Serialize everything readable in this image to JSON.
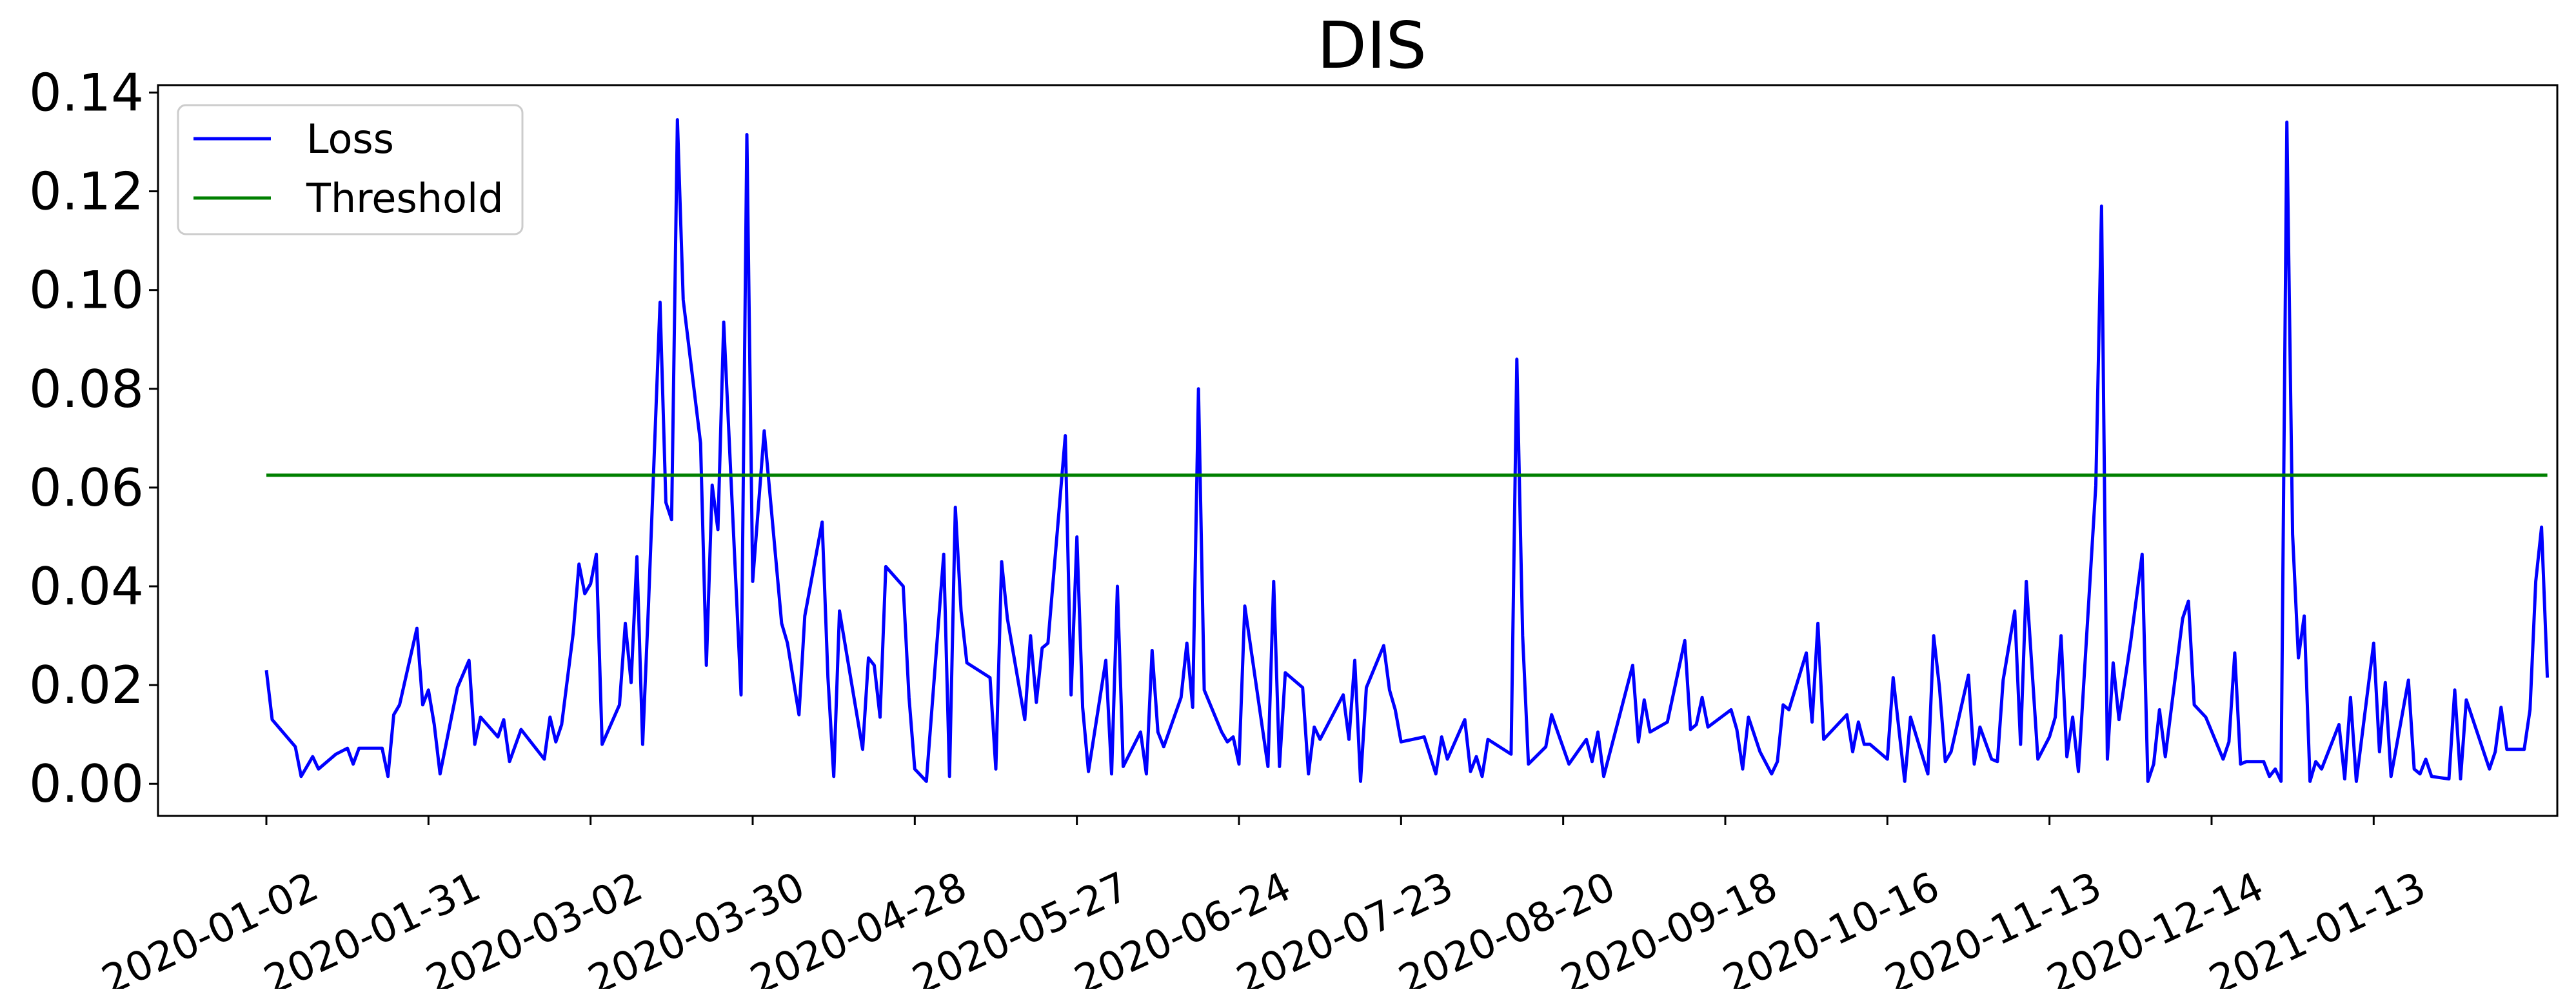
{
  "chart_data": {
    "type": "line",
    "title": "DIS",
    "xlabel": "",
    "ylabel": "",
    "x_range": [
      "2020-01-02",
      "2021-01-13"
    ],
    "ylim": [
      -0.0065,
      0.1415
    ],
    "yticks": [
      0.0,
      0.02,
      0.04,
      0.06,
      0.08,
      0.1,
      0.12,
      0.14
    ],
    "ytick_labels": [
      "0.00",
      "0.02",
      "0.04",
      "0.06",
      "0.08",
      "0.10",
      "0.12",
      "0.14"
    ],
    "xtick_labels": [
      "2020-01-02",
      "2020-01-31",
      "2020-03-02",
      "2020-03-30",
      "2020-04-28",
      "2020-05-27",
      "2020-06-24",
      "2020-07-23",
      "2020-08-20",
      "2020-09-18",
      "2020-10-16",
      "2020-11-13",
      "2020-12-14",
      "2021-01-13"
    ],
    "grid": false,
    "legend_position": "top-left",
    "series": [
      {
        "name": "Loss",
        "color": "#0000ff",
        "points": [
          [
            "2020-01-02",
            0.023
          ],
          [
            "2020-01-03",
            0.013
          ],
          [
            "2020-01-07",
            0.0075
          ],
          [
            "2020-01-08",
            0.0015
          ],
          [
            "2020-01-10",
            0.0055
          ],
          [
            "2020-01-11",
            0.003
          ],
          [
            "2020-01-14",
            0.006
          ],
          [
            "2020-01-16",
            0.0072
          ],
          [
            "2020-01-17",
            0.004
          ],
          [
            "2020-01-18",
            0.0072
          ],
          [
            "2020-01-22",
            0.0072
          ],
          [
            "2020-01-23",
            0.0015
          ],
          [
            "2020-01-24",
            0.014
          ],
          [
            "2020-01-25",
            0.016
          ],
          [
            "2020-01-28",
            0.0315
          ],
          [
            "2020-01-29",
            0.016
          ],
          [
            "2020-01-30",
            0.019
          ],
          [
            "2020-01-31",
            0.012
          ],
          [
            "2020-02-01",
            0.002
          ],
          [
            "2020-02-04",
            0.0195
          ],
          [
            "2020-02-06",
            0.025
          ],
          [
            "2020-02-07",
            0.008
          ],
          [
            "2020-02-08",
            0.0135
          ],
          [
            "2020-02-11",
            0.0095
          ],
          [
            "2020-02-12",
            0.013
          ],
          [
            "2020-02-13",
            0.0045
          ],
          [
            "2020-02-15",
            0.011
          ],
          [
            "2020-02-19",
            0.005
          ],
          [
            "2020-02-20",
            0.0135
          ],
          [
            "2020-02-21",
            0.0085
          ],
          [
            "2020-02-22",
            0.012
          ],
          [
            "2020-02-24",
            0.0305
          ],
          [
            "2020-02-25",
            0.0445
          ],
          [
            "2020-02-26",
            0.0385
          ],
          [
            "2020-02-27",
            0.0405
          ],
          [
            "2020-02-28",
            0.0465
          ],
          [
            "2020-02-29",
            0.008
          ],
          [
            "2020-03-03",
            0.016
          ],
          [
            "2020-03-04",
            0.0325
          ],
          [
            "2020-03-05",
            0.0205
          ],
          [
            "2020-03-06",
            0.046
          ],
          [
            "2020-03-07",
            0.008
          ],
          [
            "2020-03-08",
            0.036
          ],
          [
            "2020-03-10",
            0.0975
          ],
          [
            "2020-03-11",
            0.057
          ],
          [
            "2020-03-12",
            0.0535
          ],
          [
            "2020-03-13",
            0.1345
          ],
          [
            "2020-03-14",
            0.098
          ],
          [
            "2020-03-17",
            0.069
          ],
          [
            "2020-03-18",
            0.024
          ],
          [
            "2020-03-19",
            0.0605
          ],
          [
            "2020-03-20",
            0.0515
          ],
          [
            "2020-03-21",
            0.0935
          ],
          [
            "2020-03-24",
            0.018
          ],
          [
            "2020-03-25",
            0.1315
          ],
          [
            "2020-03-26",
            0.041
          ],
          [
            "2020-03-28",
            0.0715
          ],
          [
            "2020-03-31",
            0.0325
          ],
          [
            "2020-04-01",
            0.0285
          ],
          [
            "2020-04-03",
            0.014
          ],
          [
            "2020-04-04",
            0.034
          ],
          [
            "2020-04-07",
            0.053
          ],
          [
            "2020-04-08",
            0.0215
          ],
          [
            "2020-04-09",
            0.0015
          ],
          [
            "2020-04-10",
            0.035
          ],
          [
            "2020-04-14",
            0.007
          ],
          [
            "2020-04-15",
            0.0255
          ],
          [
            "2020-04-16",
            0.024
          ],
          [
            "2020-04-17",
            0.0135
          ],
          [
            "2020-04-18",
            0.044
          ],
          [
            "2020-04-21",
            0.04
          ],
          [
            "2020-04-22",
            0.0175
          ],
          [
            "2020-04-23",
            0.003
          ],
          [
            "2020-04-25",
            0.0005
          ],
          [
            "2020-04-28",
            0.0465
          ],
          [
            "2020-04-29",
            0.0015
          ],
          [
            "2020-04-30",
            0.056
          ],
          [
            "2020-05-01",
            0.035
          ],
          [
            "2020-05-02",
            0.0245
          ],
          [
            "2020-05-06",
            0.0215
          ],
          [
            "2020-05-07",
            0.003
          ],
          [
            "2020-05-08",
            0.045
          ],
          [
            "2020-05-09",
            0.0335
          ],
          [
            "2020-05-12",
            0.013
          ],
          [
            "2020-05-13",
            0.03
          ],
          [
            "2020-05-14",
            0.0165
          ],
          [
            "2020-05-15",
            0.0275
          ],
          [
            "2020-05-16",
            0.0285
          ],
          [
            "2020-05-19",
            0.0705
          ],
          [
            "2020-05-20",
            0.018
          ],
          [
            "2020-05-21",
            0.05
          ],
          [
            "2020-05-22",
            0.0155
          ],
          [
            "2020-05-23",
            0.0025
          ],
          [
            "2020-05-26",
            0.025
          ],
          [
            "2020-05-27",
            0.002
          ],
          [
            "2020-05-28",
            0.04
          ],
          [
            "2020-05-29",
            0.0035
          ],
          [
            "2020-06-01",
            0.0105
          ],
          [
            "2020-06-02",
            0.002
          ],
          [
            "2020-06-03",
            0.027
          ],
          [
            "2020-06-04",
            0.0105
          ],
          [
            "2020-06-05",
            0.0075
          ],
          [
            "2020-06-08",
            0.0175
          ],
          [
            "2020-06-09",
            0.0285
          ],
          [
            "2020-06-10",
            0.0155
          ],
          [
            "2020-06-11",
            0.08
          ],
          [
            "2020-06-12",
            0.019
          ],
          [
            "2020-06-15",
            0.0105
          ],
          [
            "2020-06-16",
            0.0085
          ],
          [
            "2020-06-17",
            0.0095
          ],
          [
            "2020-06-18",
            0.004
          ],
          [
            "2020-06-19",
            0.036
          ],
          [
            "2020-06-23",
            0.0035
          ],
          [
            "2020-06-24",
            0.041
          ],
          [
            "2020-06-25",
            0.0035
          ],
          [
            "2020-06-26",
            0.0225
          ],
          [
            "2020-06-29",
            0.0195
          ],
          [
            "2020-06-30",
            0.002
          ],
          [
            "2020-07-01",
            0.0115
          ],
          [
            "2020-07-02",
            0.009
          ],
          [
            "2020-07-06",
            0.018
          ],
          [
            "2020-07-07",
            0.009
          ],
          [
            "2020-07-08",
            0.025
          ],
          [
            "2020-07-09",
            0.0005
          ],
          [
            "2020-07-10",
            0.0195
          ],
          [
            "2020-07-13",
            0.028
          ],
          [
            "2020-07-14",
            0.019
          ],
          [
            "2020-07-15",
            0.015
          ],
          [
            "2020-07-16",
            0.0085
          ],
          [
            "2020-07-20",
            0.0095
          ],
          [
            "2020-07-22",
            0.002
          ],
          [
            "2020-07-23",
            0.0095
          ],
          [
            "2020-07-24",
            0.005
          ],
          [
            "2020-07-27",
            0.013
          ],
          [
            "2020-07-28",
            0.0025
          ],
          [
            "2020-07-29",
            0.0055
          ],
          [
            "2020-07-30",
            0.0015
          ],
          [
            "2020-07-31",
            0.009
          ],
          [
            "2020-08-04",
            0.006
          ],
          [
            "2020-08-05",
            0.086
          ],
          [
            "2020-08-06",
            0.03
          ],
          [
            "2020-08-07",
            0.004
          ],
          [
            "2020-08-10",
            0.0075
          ],
          [
            "2020-08-11",
            0.014
          ],
          [
            "2020-08-14",
            0.004
          ],
          [
            "2020-08-17",
            0.009
          ],
          [
            "2020-08-18",
            0.0045
          ],
          [
            "2020-08-19",
            0.0105
          ],
          [
            "2020-08-20",
            0.0015
          ],
          [
            "2020-08-25",
            0.024
          ],
          [
            "2020-08-26",
            0.0085
          ],
          [
            "2020-08-27",
            0.017
          ],
          [
            "2020-08-28",
            0.0105
          ],
          [
            "2020-08-31",
            0.0125
          ],
          [
            "2020-09-03",
            0.029
          ],
          [
            "2020-09-04",
            0.011
          ],
          [
            "2020-09-05",
            0.012
          ],
          [
            "2020-09-06",
            0.0175
          ],
          [
            "2020-09-07",
            0.0115
          ],
          [
            "2020-09-11",
            0.015
          ],
          [
            "2020-09-12",
            0.011
          ],
          [
            "2020-09-13",
            0.003
          ],
          [
            "2020-09-14",
            0.0135
          ],
          [
            "2020-09-16",
            0.0065
          ],
          [
            "2020-09-18",
            0.002
          ],
          [
            "2020-09-19",
            0.0045
          ],
          [
            "2020-09-20",
            0.016
          ],
          [
            "2020-09-21",
            0.015
          ],
          [
            "2020-09-24",
            0.0265
          ],
          [
            "2020-09-25",
            0.0125
          ],
          [
            "2020-09-26",
            0.0325
          ],
          [
            "2020-09-27",
            0.009
          ],
          [
            "2020-10-01",
            0.014
          ],
          [
            "2020-10-02",
            0.0065
          ],
          [
            "2020-10-03",
            0.0125
          ],
          [
            "2020-10-04",
            0.008
          ],
          [
            "2020-10-05",
            0.008
          ],
          [
            "2020-10-08",
            0.005
          ],
          [
            "2020-10-09",
            0.0215
          ],
          [
            "2020-10-11",
            0.0005
          ],
          [
            "2020-10-12",
            0.0135
          ],
          [
            "2020-10-15",
            0.002
          ],
          [
            "2020-10-16",
            0.03
          ],
          [
            "2020-10-17",
            0.0195
          ],
          [
            "2020-10-18",
            0.0045
          ],
          [
            "2020-10-19",
            0.0065
          ],
          [
            "2020-10-22",
            0.022
          ],
          [
            "2020-10-23",
            0.004
          ],
          [
            "2020-10-24",
            0.0115
          ],
          [
            "2020-10-26",
            0.005
          ],
          [
            "2020-10-27",
            0.0045
          ],
          [
            "2020-10-28",
            0.021
          ],
          [
            "2020-10-30",
            0.035
          ],
          [
            "2020-10-31",
            0.008
          ],
          [
            "2020-11-01",
            0.041
          ],
          [
            "2020-11-03",
            0.005
          ],
          [
            "2020-11-05",
            0.0095
          ],
          [
            "2020-11-06",
            0.0135
          ],
          [
            "2020-11-07",
            0.03
          ],
          [
            "2020-11-08",
            0.0055
          ],
          [
            "2020-11-09",
            0.0135
          ],
          [
            "2020-11-10",
            0.0025
          ],
          [
            "2020-11-13",
            0.0605
          ],
          [
            "2020-11-14",
            0.117
          ],
          [
            "2020-11-15",
            0.005
          ],
          [
            "2020-11-16",
            0.0245
          ],
          [
            "2020-11-17",
            0.013
          ],
          [
            "2020-11-19",
            0.0285
          ],
          [
            "2020-11-21",
            0.0465
          ],
          [
            "2020-11-22",
            0.0005
          ],
          [
            "2020-11-23",
            0.004
          ],
          [
            "2020-11-24",
            0.015
          ],
          [
            "2020-11-25",
            0.0055
          ],
          [
            "2020-11-28",
            0.0335
          ],
          [
            "2020-11-29",
            0.037
          ],
          [
            "2020-11-30",
            0.016
          ],
          [
            "2020-12-02",
            0.0135
          ],
          [
            "2020-12-05",
            0.005
          ],
          [
            "2020-12-06",
            0.0085
          ],
          [
            "2020-12-07",
            0.0265
          ],
          [
            "2020-12-08",
            0.004
          ],
          [
            "2020-12-09",
            0.0045
          ],
          [
            "2020-12-11",
            0.0045
          ],
          [
            "2020-12-12",
            0.0045
          ],
          [
            "2020-12-13",
            0.0015
          ],
          [
            "2020-12-14",
            0.003
          ],
          [
            "2020-12-15",
            0.0005
          ],
          [
            "2020-12-16",
            0.134
          ],
          [
            "2020-12-17",
            0.0505
          ],
          [
            "2020-12-18",
            0.0255
          ],
          [
            "2020-12-19",
            0.034
          ],
          [
            "2020-12-20",
            0.0005
          ],
          [
            "2020-12-21",
            0.0045
          ],
          [
            "2020-12-22",
            0.003
          ],
          [
            "2020-12-25",
            0.012
          ],
          [
            "2020-12-26",
            0.001
          ],
          [
            "2020-12-27",
            0.0175
          ],
          [
            "2020-12-28",
            0.0005
          ],
          [
            "2020-12-31",
            0.0285
          ],
          [
            "2021-01-01",
            0.0065
          ],
          [
            "2021-01-02",
            0.0205
          ],
          [
            "2021-01-03",
            0.0015
          ],
          [
            "2021-01-06",
            0.021
          ],
          [
            "2021-01-07",
            0.003
          ],
          [
            "2021-01-08",
            0.002
          ],
          [
            "2021-01-09",
            0.005
          ],
          [
            "2021-01-10",
            0.0015
          ],
          [
            "2021-01-13",
            0.001
          ],
          [
            "2021-01-14",
            0.019
          ],
          [
            "2021-01-15",
            0.001
          ],
          [
            "2021-01-16",
            0.017
          ],
          [
            "2021-01-17",
            0.0135
          ],
          [
            "2021-01-20",
            0.003
          ],
          [
            "2021-01-21",
            0.0065
          ],
          [
            "2021-01-22",
            0.0155
          ],
          [
            "2021-01-23",
            0.007
          ],
          [
            "2021-01-26",
            0.007
          ],
          [
            "2021-01-27",
            0.015
          ],
          [
            "2021-01-28",
            0.041
          ],
          [
            "2021-01-29",
            0.052
          ],
          [
            "2021-01-30",
            0.0215
          ]
        ]
      },
      {
        "name": "Threshold",
        "color": "#008000",
        "points": [
          [
            "2020-01-02",
            0.0625
          ],
          [
            "2021-01-30",
            0.0625
          ]
        ]
      }
    ]
  }
}
